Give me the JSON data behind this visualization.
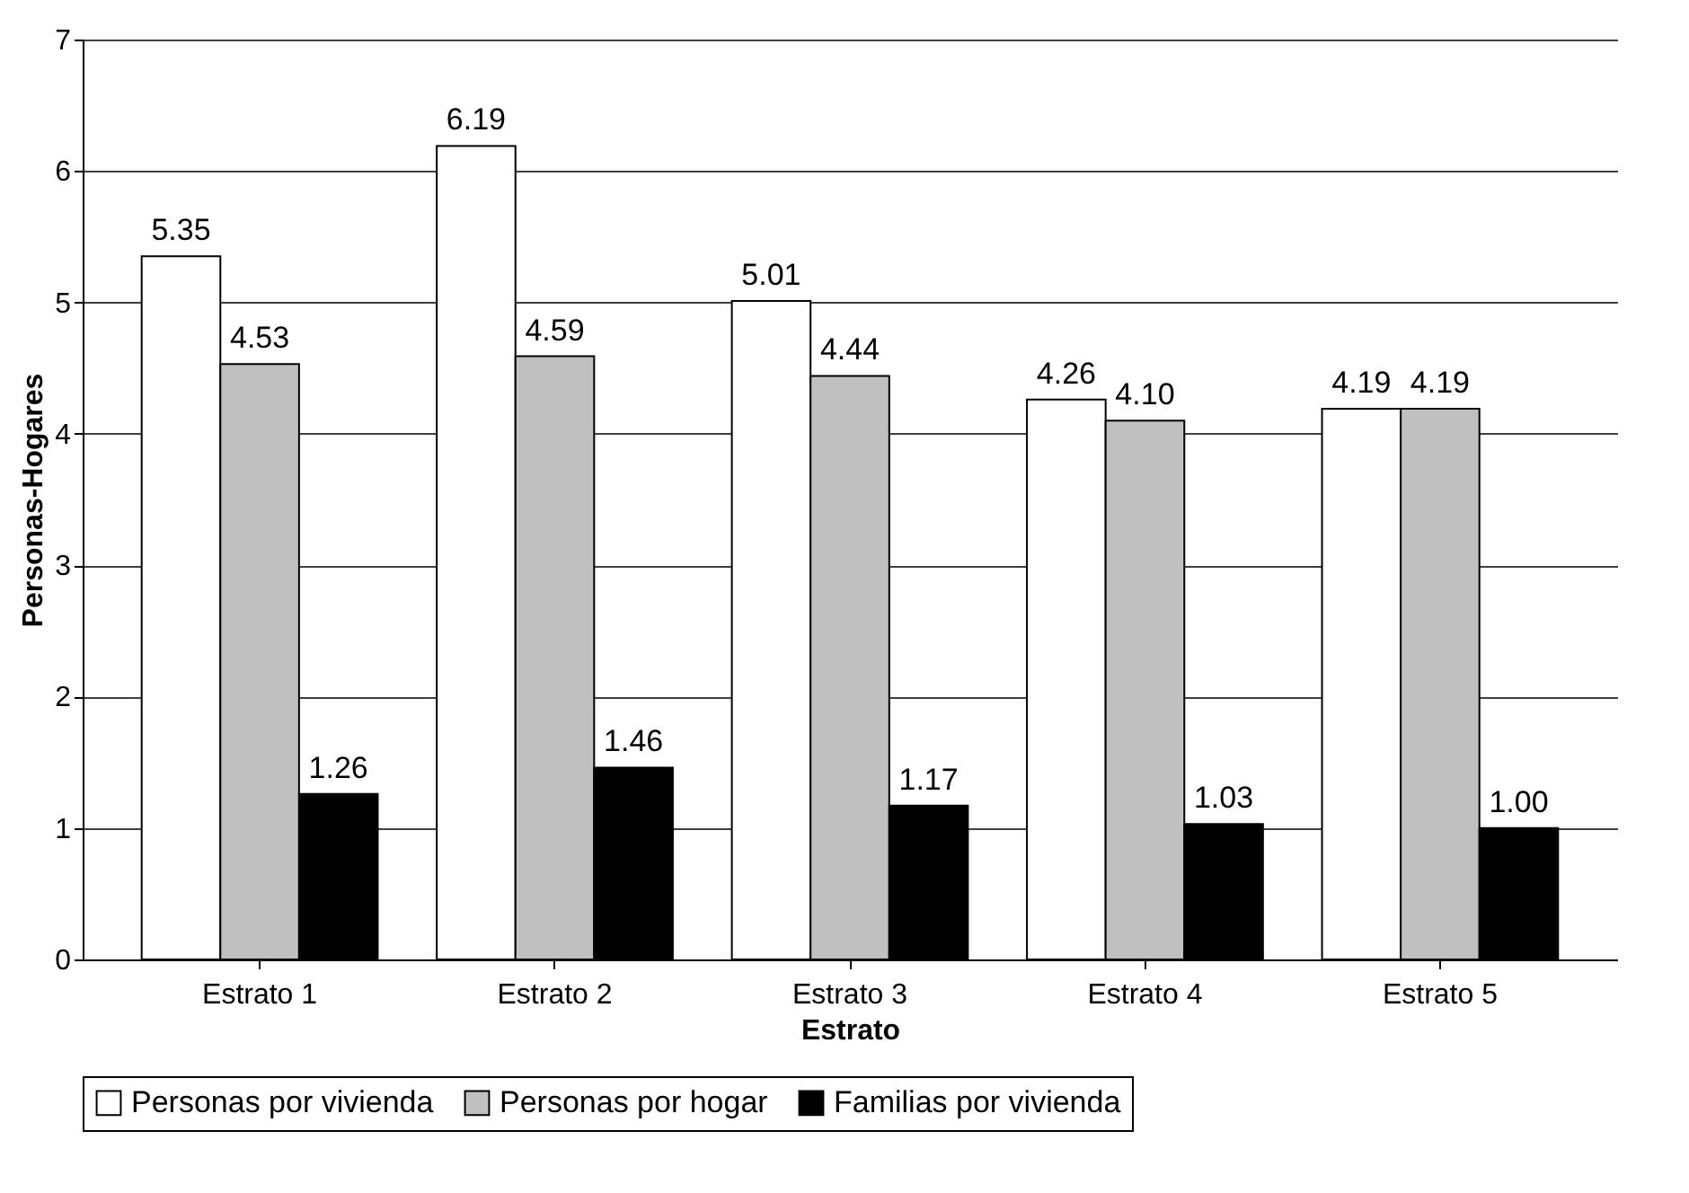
{
  "chart_data": {
    "type": "bar",
    "xlabel": "Estrato",
    "ylabel": "Personas-Hogares",
    "categories": [
      "Estrato 1",
      "Estrato 2",
      "Estrato 3",
      "Estrato 4",
      "Estrato 5"
    ],
    "series": [
      {
        "name": "Personas por vivienda",
        "color": "#ffffff",
        "values": [
          5.35,
          6.19,
          5.01,
          4.26,
          4.19
        ],
        "value_labels": [
          "5.35",
          "6.19",
          "5.01",
          "4.26",
          "4.19"
        ]
      },
      {
        "name": "Personas por hogar",
        "color": "#c0c0c0",
        "values": [
          4.53,
          4.59,
          4.44,
          4.1,
          4.19
        ],
        "value_labels": [
          "4.53",
          "4.59",
          "4.44",
          "4.10",
          "4.19"
        ]
      },
      {
        "name": "Familias por vivienda",
        "color": "#000000",
        "values": [
          1.26,
          1.46,
          1.17,
          1.03,
          1.0
        ],
        "value_labels": [
          "1.26",
          "1.46",
          "1.17",
          "1.03",
          "1.00"
        ]
      }
    ],
    "ylim": [
      0,
      7
    ],
    "yticks": [
      0,
      1,
      2,
      3,
      4,
      5,
      6,
      7
    ],
    "grid": "y",
    "legend": "bottom"
  }
}
